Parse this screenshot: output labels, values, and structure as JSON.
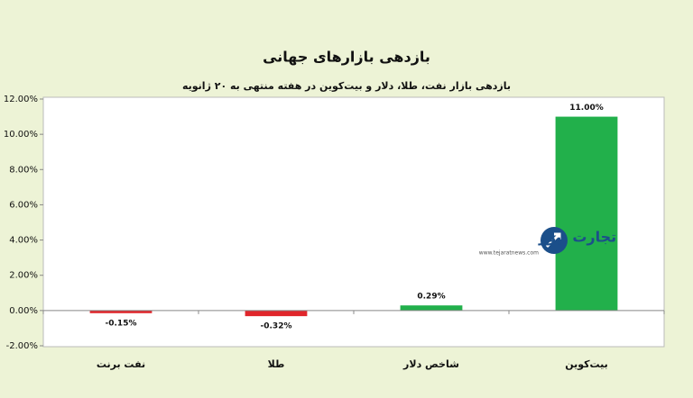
{
  "chart_data": {
    "type": "bar",
    "title": "بازدهی بازارهای جهانی",
    "subtitle": "بازدهی بازار نفت، طلا، دلار و بیت‌کوین در هفته منتهی به ۲۰ ژانویه",
    "categories": [
      "نفت برنت",
      "طلا",
      "شاخص دلار",
      "بیت‌کوین"
    ],
    "values": [
      -0.15,
      -0.32,
      0.29,
      11.0
    ],
    "value_labels": [
      "-0.15%",
      "-0.32%",
      "0.29%",
      "11.00%"
    ],
    "colors": [
      "#e0262b",
      "#e0262b",
      "#22b04b",
      "#22b04b"
    ],
    "ylim": [
      -2,
      12
    ],
    "yticks": [
      {
        "value": -2,
        "label": "-2.00%"
      },
      {
        "value": 0,
        "label": "0.00%"
      },
      {
        "value": 2,
        "label": "2.00%"
      },
      {
        "value": 4,
        "label": "4.00%"
      },
      {
        "value": 6,
        "label": "6.00%"
      },
      {
        "value": 8,
        "label": "8.00%"
      },
      {
        "value": 10,
        "label": "10.00%"
      },
      {
        "value": 12,
        "label": "12.00%"
      }
    ],
    "annotations": [
      "تجارت نیوز",
      "www.tejaratnews.com"
    ]
  }
}
